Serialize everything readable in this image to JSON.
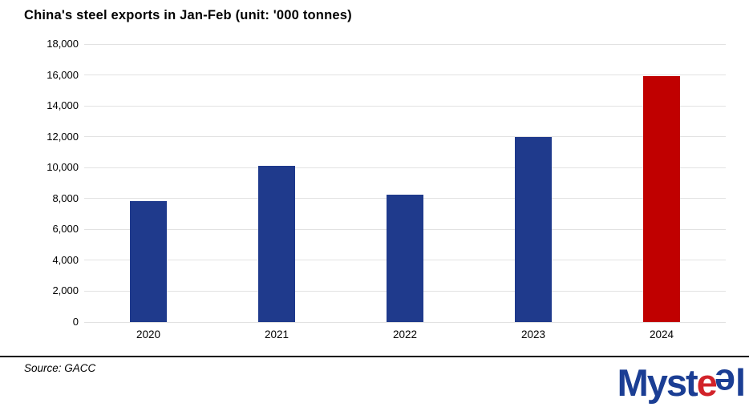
{
  "title": "China's steel exports in Jan-Feb (unit: '000 tonnes)",
  "source_note": "Source: GACC",
  "logo": {
    "text": "Mysteel",
    "part_myst": "Myst",
    "part_e_red": "e",
    "part_e_blue": "e",
    "part_l": "l",
    "blue": "#1B3E94",
    "red": "#D2232A"
  },
  "colors": {
    "bar_blue": "#1F3A8C",
    "bar_red": "#C00000",
    "gridline": "#E2E2E2",
    "divider": "#000000",
    "text": "#000000",
    "background": "#FFFFFF"
  },
  "chart_data": {
    "type": "bar",
    "title": "China's steel exports in Jan-Feb (unit: '000 tonnes)",
    "categories": [
      "2020",
      "2021",
      "2022",
      "2023",
      "2024"
    ],
    "values": [
      7810,
      10140,
      8230,
      12000,
      15910
    ],
    "bar_colors": [
      "#1F3A8C",
      "#1F3A8C",
      "#1F3A8C",
      "#1F3A8C",
      "#C00000"
    ],
    "xlabel": "",
    "ylabel": "",
    "ylim": [
      0,
      18000
    ],
    "ytick_step": 2000,
    "yticklabels": [
      "0",
      "2,000",
      "4,000",
      "6,000",
      "8,000",
      "10,000",
      "12,000",
      "14,000",
      "16,000",
      "18,000"
    ],
    "grid": true,
    "legend": false,
    "legend_position": "none",
    "highlight_category": "2024"
  }
}
